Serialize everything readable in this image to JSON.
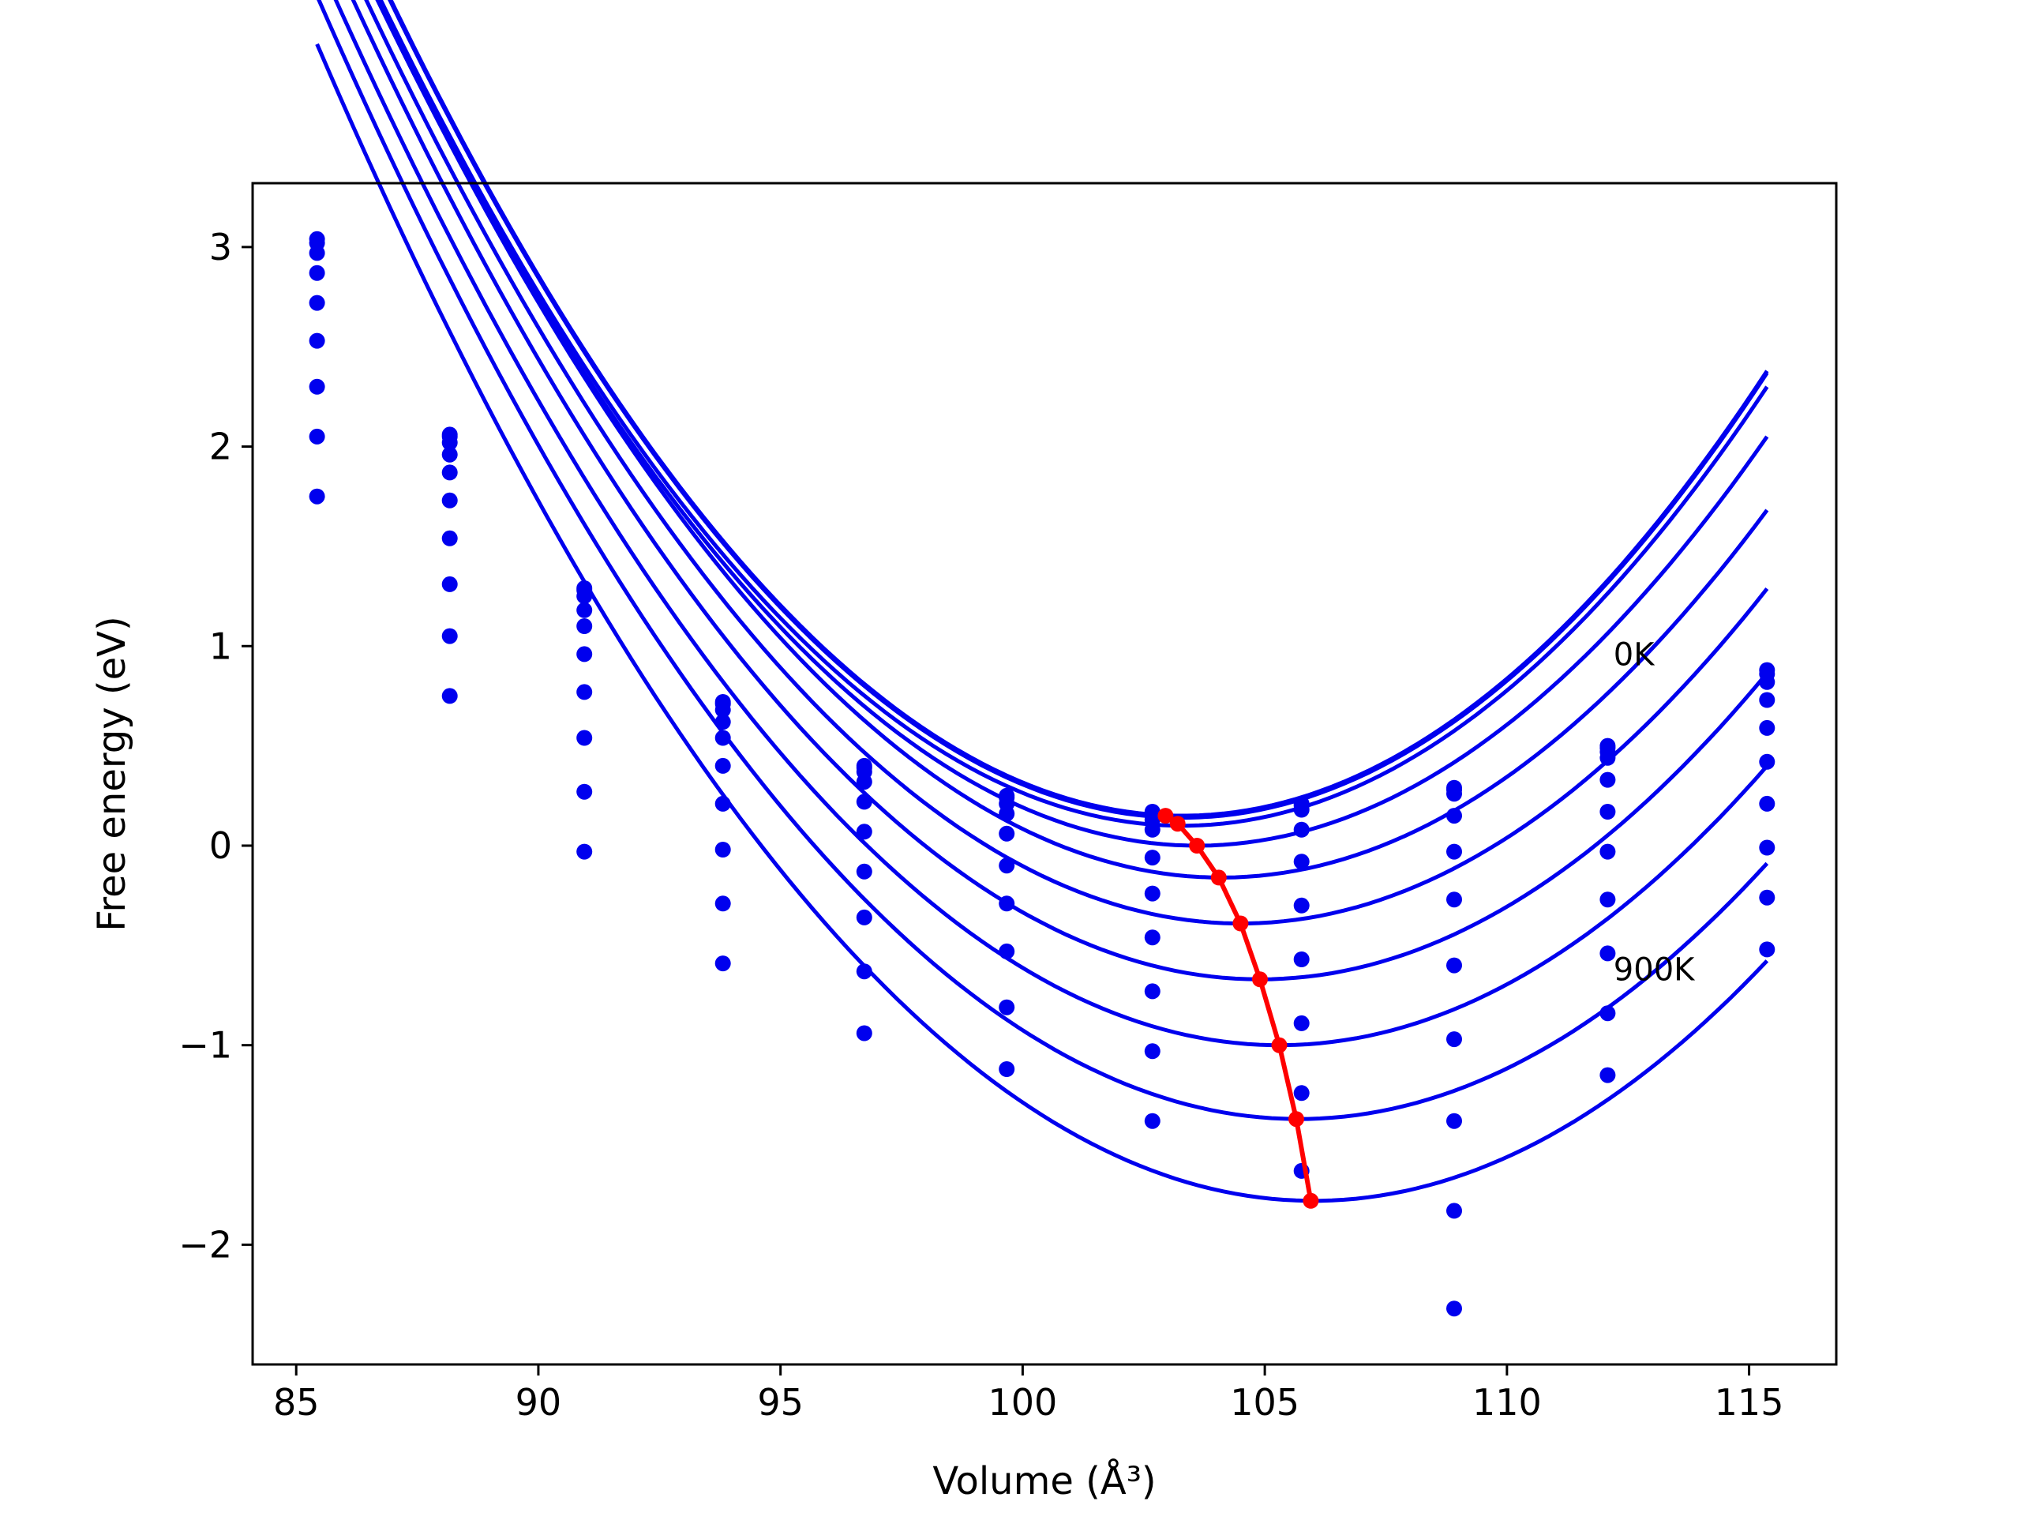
{
  "chart_data": {
    "type": "line",
    "xlabel": "Volume (Å³)",
    "ylabel": "Free energy (eV)",
    "xlim": [
      84.1,
      116.8
    ],
    "ylim": [
      -2.6,
      3.32
    ],
    "x_ticks": [
      85,
      90,
      95,
      100,
      105,
      110,
      115
    ],
    "x_tick_labels": [
      "85",
      "90",
      "95",
      "100",
      "105",
      "110",
      "115"
    ],
    "y_ticks": [
      -2,
      -1,
      0,
      1,
      2,
      3
    ],
    "y_tick_labels": [
      "−2",
      "−1",
      "0",
      "1",
      "2",
      "3"
    ],
    "annotations": [
      {
        "text": "0K",
        "x": 112.2,
        "y": 0.96
      },
      {
        "text": "900K",
        "x": 112.2,
        "y": -0.62
      }
    ],
    "volumes": [
      85.43,
      88.17,
      90.95,
      93.81,
      96.73,
      99.67,
      102.68,
      105.76,
      108.91,
      112.08,
      115.37
    ],
    "series": [
      {
        "values": [
          3.04,
          2.06,
          1.29,
          0.72,
          0.4,
          0.25,
          0.17,
          0.21,
          0.29,
          0.5,
          0.88
        ],
        "curve": {
          "type": "quadratic",
          "a": 0.0153,
          "v0": 103.3,
          "e0": 0.15,
          "x_range": [
            85.43,
            115.37
          ]
        }
      },
      {
        "values": [
          3.02,
          2.05,
          1.28,
          0.71,
          0.39,
          0.24,
          0.16,
          0.2,
          0.28,
          0.49,
          0.86
        ],
        "curve": {
          "type": "quadratic",
          "a": 0.0153,
          "v0": 103.3,
          "e0": 0.14,
          "x_range": [
            85.43,
            115.37
          ]
        }
      },
      {
        "values": [
          2.97,
          2.02,
          1.25,
          0.68,
          0.37,
          0.21,
          0.13,
          0.18,
          0.26,
          0.47,
          0.82
        ],
        "curve": {
          "type": "quadratic",
          "a": 0.0151,
          "v0": 103.3,
          "e0": 0.1,
          "x_range": [
            85.43,
            115.37
          ]
        }
      },
      {
        "values": [
          2.87,
          1.96,
          1.18,
          0.62,
          0.32,
          0.16,
          0.08,
          0.08,
          0.15,
          0.44,
          0.73
        ],
        "curve": {
          "type": "quadratic",
          "a": 0.0148,
          "v0": 103.6,
          "e0": 0.0,
          "x_range": [
            85.43,
            115.37
          ]
        }
      },
      {
        "values": [
          2.72,
          1.87,
          1.1,
          0.54,
          0.22,
          0.06,
          -0.06,
          -0.08,
          -0.03,
          0.33,
          0.59
        ],
        "curve": {
          "type": "quadratic",
          "a": 0.0145,
          "v0": 104.1,
          "e0": -0.16,
          "x_range": [
            85.43,
            115.37
          ]
        }
      },
      {
        "values": [
          2.53,
          1.73,
          0.96,
          0.4,
          0.07,
          -0.1,
          -0.24,
          -0.3,
          -0.27,
          0.17,
          0.42
        ],
        "curve": {
          "type": "quadratic",
          "a": 0.0142,
          "v0": 104.5,
          "e0": -0.39,
          "x_range": [
            85.43,
            115.37
          ]
        }
      },
      {
        "values": [
          2.3,
          1.54,
          0.77,
          0.21,
          -0.13,
          -0.29,
          -0.46,
          -0.57,
          -0.6,
          -0.03,
          0.21
        ],
        "curve": {
          "type": "quadratic",
          "a": 0.014,
          "v0": 104.9,
          "e0": -0.67,
          "x_range": [
            85.43,
            115.37
          ]
        }
      },
      {
        "values": [
          2.05,
          1.31,
          0.54,
          -0.02,
          -0.36,
          -0.53,
          -0.73,
          -0.89,
          -0.97,
          -0.27,
          -0.01
        ],
        "curve": {
          "type": "quadratic",
          "a": 0.0138,
          "v0": 105.3,
          "e0": -1.0,
          "x_range": [
            85.43,
            115.37
          ]
        }
      },
      {
        "values": [
          1.75,
          1.05,
          0.27,
          -0.29,
          -0.63,
          -0.81,
          -1.03,
          -1.24,
          -1.38,
          -0.54,
          -0.26
        ],
        "curve": {
          "type": "quadratic",
          "a": 0.0137,
          "v0": 105.7,
          "e0": -1.37,
          "x_range": [
            85.43,
            115.37
          ]
        }
      },
      {
        "values": [
          null,
          0.75,
          -0.03,
          -0.59,
          -0.94,
          -1.12,
          -1.38,
          -1.63,
          -1.83,
          -0.84,
          -0.52
        ],
        "curve": {
          "type": "quadratic",
          "a": 0.0137,
          "v0": 106.0,
          "e0": -1.78,
          "x_range": [
            85.43,
            115.37
          ]
        }
      },
      {
        "values": [
          null,
          null,
          null,
          null,
          null,
          null,
          null,
          null,
          -2.32,
          -1.15,
          null
        ],
        "curve": null
      }
    ],
    "minimum_path": {
      "x": [
        102.95,
        103.2,
        103.6,
        104.05,
        104.5,
        104.9,
        105.3,
        105.65,
        105.95
      ],
      "y": [
        0.15,
        0.11,
        0.0,
        -0.16,
        -0.39,
        -0.67,
        -1.0,
        -1.37,
        -1.78
      ],
      "color": "#ff0000"
    },
    "series_color": "#0000ee",
    "grid": false,
    "legend": "none"
  }
}
